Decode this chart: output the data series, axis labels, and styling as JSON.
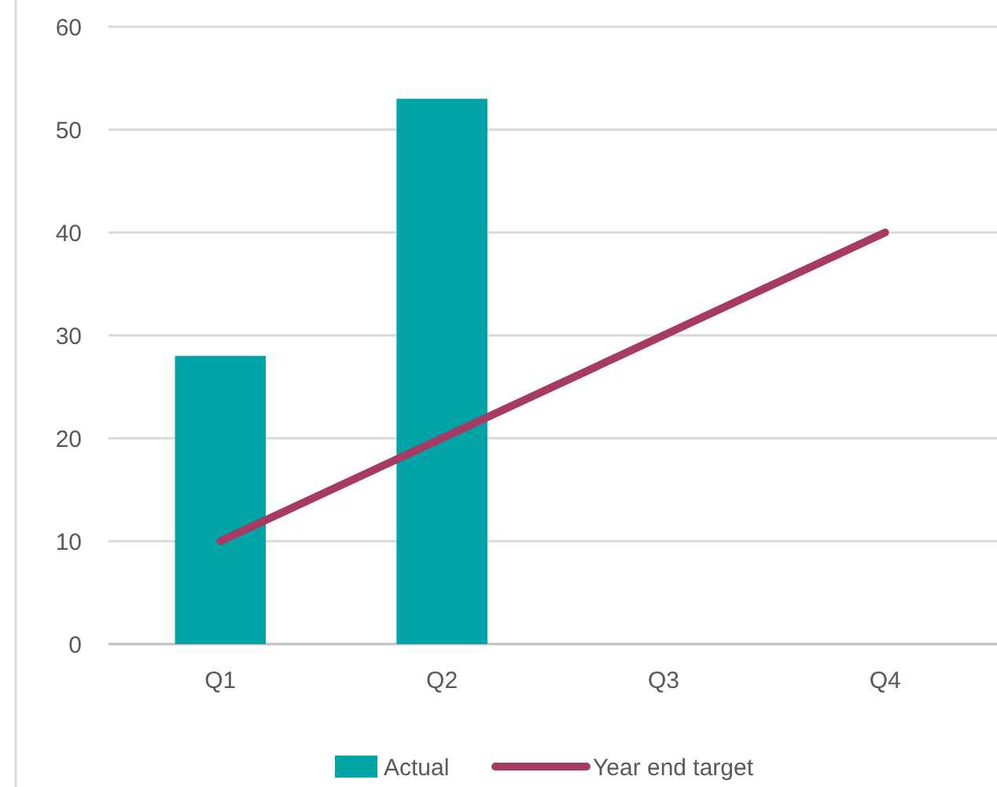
{
  "chart_data": {
    "type": "bar",
    "categories": [
      "Q1",
      "Q2",
      "Q3",
      "Q4"
    ],
    "series": [
      {
        "name": "Actual",
        "color": "#00a4a6",
        "values": [
          28,
          53,
          null,
          null
        ]
      },
      {
        "name": "Year end target",
        "type": "line",
        "color": "#a63a62",
        "values": [
          10,
          20,
          30,
          40
        ]
      }
    ],
    "ylim": [
      0,
      60
    ],
    "yticks": [
      0,
      10,
      20,
      30,
      40,
      50,
      60
    ],
    "grid": "y",
    "legend": "bottom",
    "marker": "none",
    "line_style": "solid"
  }
}
